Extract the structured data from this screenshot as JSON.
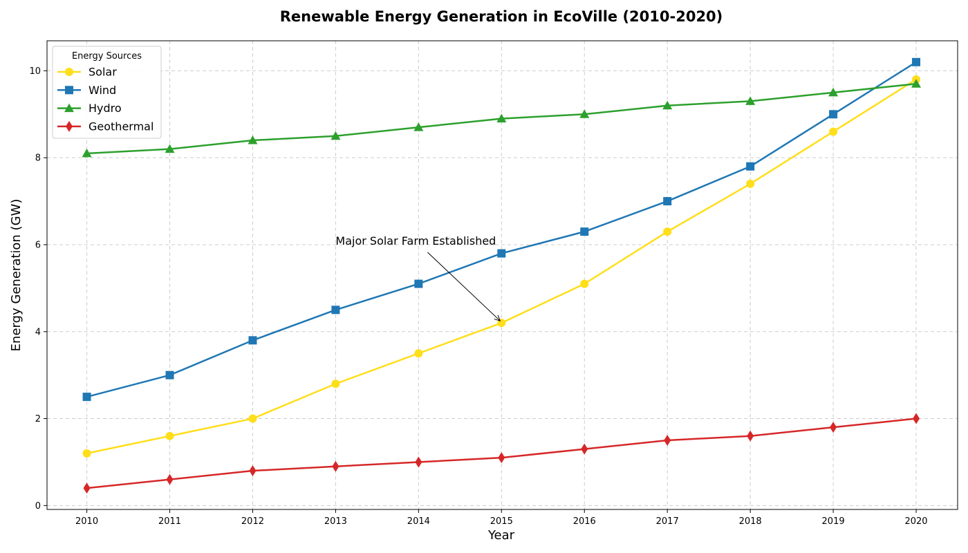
{
  "chart_data": {
    "type": "line",
    "title": "Renewable Energy Generation in EcoVille (2010-2020)",
    "xlabel": "Year",
    "ylabel": "Energy Generation (GW)",
    "x": [
      2010,
      2011,
      2012,
      2013,
      2014,
      2015,
      2016,
      2017,
      2018,
      2019,
      2020
    ],
    "xlim": [
      2009.52,
      2020.5
    ],
    "ylim": [
      -0.09,
      10.69
    ],
    "yticks": [
      0,
      2,
      4,
      6,
      8,
      10
    ],
    "grid": true,
    "legend": {
      "title": "Energy Sources",
      "position": "top-left"
    },
    "series": [
      {
        "name": "Solar",
        "color": "#ffde1a",
        "marker": "circle",
        "values": [
          1.2,
          1.6,
          2.0,
          2.8,
          3.5,
          4.2,
          5.1,
          6.3,
          7.4,
          8.6,
          9.8
        ]
      },
      {
        "name": "Wind",
        "color": "#1f77b4",
        "marker": "square",
        "values": [
          2.5,
          3.0,
          3.8,
          4.5,
          5.1,
          5.8,
          6.3,
          7.0,
          7.8,
          9.0,
          10.2
        ]
      },
      {
        "name": "Hydro",
        "color": "#2ca02c",
        "marker": "triangle",
        "values": [
          8.1,
          8.2,
          8.4,
          8.5,
          8.7,
          8.9,
          9.0,
          9.2,
          9.3,
          9.5,
          9.7
        ]
      },
      {
        "name": "Geothermal",
        "color": "#d62728",
        "marker": "diamond",
        "values": [
          0.4,
          0.6,
          0.8,
          0.9,
          1.0,
          1.1,
          1.3,
          1.5,
          1.6,
          1.8,
          2.0
        ]
      }
    ],
    "annotations": [
      {
        "text": "Major Solar Farm Established",
        "point": {
          "x": 2015,
          "y": 4.2
        },
        "text_at": {
          "x": 2013,
          "y": 6.0
        }
      }
    ]
  }
}
